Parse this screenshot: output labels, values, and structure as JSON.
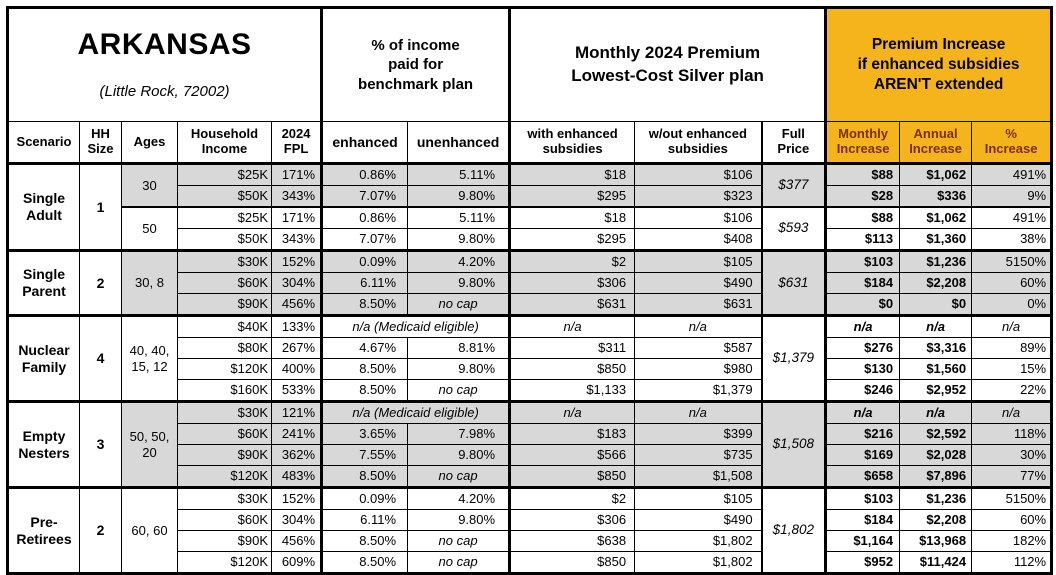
{
  "colors": {
    "amber": "#F5B41B",
    "row_shading_gray": "#D8D8D8",
    "increase_header_text": "#7B2F00",
    "border": "#000000"
  },
  "title_block": {
    "state": "ARKANSAS",
    "location": "(Little Rock, 72002)"
  },
  "group_headers": {
    "benchmark": "% of income\npaid for\nbenchmark plan",
    "premium": "Monthly 2024 Premium\nLowest-Cost Silver plan",
    "increase": "Premium Increase\nif enhanced subsidies\nAREN'T extended"
  },
  "column_headers": {
    "scenario": "Scenario",
    "hh_size": "HH\nSize",
    "ages": "Ages",
    "household_income": "Household\nIncome",
    "fpl_2024": "2024\nFPL",
    "enhanced": "enhanced",
    "unenhanced": "unenhanced",
    "with_enhanced_subsidies": "with enhanced\nsubsidies",
    "without_enhanced_subsidies": "w/out enhanced\nsubsidies",
    "full_price": "Full\nPrice",
    "monthly_increase": "Monthly\nIncrease",
    "annual_increase": "Annual\nIncrease",
    "pct_increase": "%\nIncrease"
  },
  "rows": [
    {
      "sep": null,
      "cells": [
        {
          "c": "scenario",
          "t": "Single\nAdult",
          "rs": 4
        },
        {
          "c": "hh",
          "t": "1",
          "rs": 4
        },
        {
          "c": "ages",
          "t": "30",
          "rs": 2,
          "sh": 1
        },
        {
          "c": "income",
          "t": "$25K",
          "sh": 1
        },
        {
          "c": "fpl",
          "t": "171%",
          "sh": 1
        },
        {
          "c": "enh",
          "t": "0.86%",
          "sh": 1
        },
        {
          "c": "unenh",
          "t": "5.11%",
          "sh": 1
        },
        {
          "c": "wsub",
          "t": "$18",
          "sh": 1
        },
        {
          "c": "wosub",
          "t": "$106",
          "sh": 1
        },
        {
          "c": "full",
          "t": "$377",
          "rs": 2,
          "sh": 1
        },
        {
          "c": "mi",
          "t": "$88",
          "sh": 1
        },
        {
          "c": "ai",
          "t": "$1,062",
          "sh": 1
        },
        {
          "c": "pct",
          "t": "491%",
          "sh": 1
        }
      ]
    },
    {
      "sep": null,
      "cells": [
        {
          "c": "income",
          "t": "$50K",
          "sh": 1
        },
        {
          "c": "fpl",
          "t": "343%",
          "sh": 1
        },
        {
          "c": "enh",
          "t": "7.07%",
          "sh": 1
        },
        {
          "c": "unenh",
          "t": "9.80%",
          "sh": 1
        },
        {
          "c": "wsub",
          "t": "$295",
          "sh": 1
        },
        {
          "c": "wosub",
          "t": "$323",
          "sh": 1
        },
        {
          "c": "mi",
          "t": "$28",
          "sh": 1
        },
        {
          "c": "ai",
          "t": "$336",
          "sh": 1
        },
        {
          "c": "pct",
          "t": "9%",
          "sh": 1
        }
      ]
    },
    {
      "sep": "sub",
      "cells": [
        {
          "c": "ages",
          "t": "50",
          "rs": 2
        },
        {
          "c": "income",
          "t": "$25K"
        },
        {
          "c": "fpl",
          "t": "171%"
        },
        {
          "c": "enh",
          "t": "0.86%"
        },
        {
          "c": "unenh",
          "t": "5.11%"
        },
        {
          "c": "wsub",
          "t": "$18"
        },
        {
          "c": "wosub",
          "t": "$106"
        },
        {
          "c": "full",
          "t": "$593",
          "rs": 2
        },
        {
          "c": "mi",
          "t": "$88"
        },
        {
          "c": "ai",
          "t": "$1,062"
        },
        {
          "c": "pct",
          "t": "491%"
        }
      ]
    },
    {
      "sep": null,
      "cells": [
        {
          "c": "income",
          "t": "$50K"
        },
        {
          "c": "fpl",
          "t": "343%"
        },
        {
          "c": "enh",
          "t": "7.07%"
        },
        {
          "c": "unenh",
          "t": "9.80%"
        },
        {
          "c": "wsub",
          "t": "$295"
        },
        {
          "c": "wosub",
          "t": "$408"
        },
        {
          "c": "mi",
          "t": "$113"
        },
        {
          "c": "ai",
          "t": "$1,360"
        },
        {
          "c": "pct",
          "t": "38%"
        }
      ]
    },
    {
      "sep": "section",
      "cells": [
        {
          "c": "scenario",
          "t": "Single\nParent",
          "rs": 3
        },
        {
          "c": "hh",
          "t": "2",
          "rs": 3
        },
        {
          "c": "ages",
          "t": "30, 8",
          "rs": 3,
          "sh": 1
        },
        {
          "c": "income",
          "t": "$30K",
          "sh": 1
        },
        {
          "c": "fpl",
          "t": "152%",
          "sh": 1
        },
        {
          "c": "enh",
          "t": "0.09%",
          "sh": 1
        },
        {
          "c": "unenh",
          "t": "4.20%",
          "sh": 1
        },
        {
          "c": "wsub",
          "t": "$2",
          "sh": 1
        },
        {
          "c": "wosub",
          "t": "$105",
          "sh": 1
        },
        {
          "c": "full",
          "t": "$631",
          "rs": 3,
          "sh": 1
        },
        {
          "c": "mi",
          "t": "$103",
          "sh": 1
        },
        {
          "c": "ai",
          "t": "$1,236",
          "sh": 1
        },
        {
          "c": "pct",
          "t": "5150%",
          "sh": 1
        }
      ]
    },
    {
      "sep": null,
      "cells": [
        {
          "c": "income",
          "t": "$60K",
          "sh": 1
        },
        {
          "c": "fpl",
          "t": "304%",
          "sh": 1
        },
        {
          "c": "enh",
          "t": "6.11%",
          "sh": 1
        },
        {
          "c": "unenh",
          "t": "9.80%",
          "sh": 1
        },
        {
          "c": "wsub",
          "t": "$306",
          "sh": 1
        },
        {
          "c": "wosub",
          "t": "$490",
          "sh": 1
        },
        {
          "c": "mi",
          "t": "$184",
          "sh": 1
        },
        {
          "c": "ai",
          "t": "$2,208",
          "sh": 1
        },
        {
          "c": "pct",
          "t": "60%",
          "sh": 1
        }
      ]
    },
    {
      "sep": null,
      "cells": [
        {
          "c": "income",
          "t": "$90K",
          "sh": 1
        },
        {
          "c": "fpl",
          "t": "456%",
          "sh": 1
        },
        {
          "c": "enh",
          "t": "8.50%",
          "sh": 1
        },
        {
          "c": "unenh",
          "t": "no cap",
          "sh": 1,
          "cls": "i c"
        },
        {
          "c": "wsub",
          "t": "$631",
          "sh": 1
        },
        {
          "c": "wosub",
          "t": "$631",
          "sh": 1
        },
        {
          "c": "mi",
          "t": "$0",
          "sh": 1
        },
        {
          "c": "ai",
          "t": "$0",
          "sh": 1
        },
        {
          "c": "pct",
          "t": "0%",
          "sh": 1
        }
      ]
    },
    {
      "sep": "section",
      "cells": [
        {
          "c": "scenario",
          "t": "Nuclear\nFamily",
          "rs": 4
        },
        {
          "c": "hh",
          "t": "4",
          "rs": 4
        },
        {
          "c": "ages",
          "t": "40, 40,\n15, 12",
          "rs": 4
        },
        {
          "c": "income",
          "t": "$40K"
        },
        {
          "c": "fpl",
          "t": "133%"
        },
        {
          "c": "enh",
          "t": "n/a (Medicaid eligible)",
          "cs": 2,
          "cls": "i c"
        },
        {
          "c": "wsub",
          "t": "n/a",
          "cls": "i c"
        },
        {
          "c": "wosub",
          "t": "n/a",
          "cls": "i c"
        },
        {
          "c": "full",
          "t": "$1,379",
          "rs": 4
        },
        {
          "c": "mi",
          "t": "n/a",
          "cls": "i c"
        },
        {
          "c": "ai",
          "t": "n/a",
          "cls": "i c"
        },
        {
          "c": "pct",
          "t": "n/a",
          "cls": "i c"
        }
      ]
    },
    {
      "sep": null,
      "cells": [
        {
          "c": "income",
          "t": "$80K"
        },
        {
          "c": "fpl",
          "t": "267%"
        },
        {
          "c": "enh",
          "t": "4.67%"
        },
        {
          "c": "unenh",
          "t": "8.81%"
        },
        {
          "c": "wsub",
          "t": "$311"
        },
        {
          "c": "wosub",
          "t": "$587"
        },
        {
          "c": "mi",
          "t": "$276"
        },
        {
          "c": "ai",
          "t": "$3,316"
        },
        {
          "c": "pct",
          "t": "89%"
        }
      ]
    },
    {
      "sep": null,
      "cells": [
        {
          "c": "income",
          "t": "$120K"
        },
        {
          "c": "fpl",
          "t": "400%"
        },
        {
          "c": "enh",
          "t": "8.50%"
        },
        {
          "c": "unenh",
          "t": "9.80%"
        },
        {
          "c": "wsub",
          "t": "$850"
        },
        {
          "c": "wosub",
          "t": "$980"
        },
        {
          "c": "mi",
          "t": "$130"
        },
        {
          "c": "ai",
          "t": "$1,560"
        },
        {
          "c": "pct",
          "t": "15%"
        }
      ]
    },
    {
      "sep": null,
      "cells": [
        {
          "c": "income",
          "t": "$160K"
        },
        {
          "c": "fpl",
          "t": "533%"
        },
        {
          "c": "enh",
          "t": "8.50%"
        },
        {
          "c": "unenh",
          "t": "no cap",
          "cls": "i c"
        },
        {
          "c": "wsub",
          "t": "$1,133"
        },
        {
          "c": "wosub",
          "t": "$1,379"
        },
        {
          "c": "mi",
          "t": "$246"
        },
        {
          "c": "ai",
          "t": "$2,952"
        },
        {
          "c": "pct",
          "t": "22%"
        }
      ]
    },
    {
      "sep": "section",
      "cells": [
        {
          "c": "scenario",
          "t": "Empty\nNesters",
          "rs": 4
        },
        {
          "c": "hh",
          "t": "3",
          "rs": 4
        },
        {
          "c": "ages",
          "t": "50, 50,\n20",
          "rs": 4,
          "sh": 1
        },
        {
          "c": "income",
          "t": "$30K",
          "sh": 1
        },
        {
          "c": "fpl",
          "t": "121%",
          "sh": 1
        },
        {
          "c": "enh",
          "t": "n/a (Medicaid eligible)",
          "cs": 2,
          "sh": 1,
          "cls": "i c"
        },
        {
          "c": "wsub",
          "t": "n/a",
          "sh": 1,
          "cls": "i c"
        },
        {
          "c": "wosub",
          "t": "n/a",
          "sh": 1,
          "cls": "i c"
        },
        {
          "c": "full",
          "t": "$1,508",
          "rs": 4,
          "sh": 1
        },
        {
          "c": "mi",
          "t": "n/a",
          "sh": 1,
          "cls": "i c"
        },
        {
          "c": "ai",
          "t": "n/a",
          "sh": 1,
          "cls": "i c"
        },
        {
          "c": "pct",
          "t": "n/a",
          "sh": 1,
          "cls": "i c"
        }
      ]
    },
    {
      "sep": null,
      "cells": [
        {
          "c": "income",
          "t": "$60K",
          "sh": 1
        },
        {
          "c": "fpl",
          "t": "241%",
          "sh": 1
        },
        {
          "c": "enh",
          "t": "3.65%",
          "sh": 1
        },
        {
          "c": "unenh",
          "t": "7.98%",
          "sh": 1
        },
        {
          "c": "wsub",
          "t": "$183",
          "sh": 1
        },
        {
          "c": "wosub",
          "t": "$399",
          "sh": 1
        },
        {
          "c": "mi",
          "t": "$216",
          "sh": 1
        },
        {
          "c": "ai",
          "t": "$2,592",
          "sh": 1
        },
        {
          "c": "pct",
          "t": "118%",
          "sh": 1
        }
      ]
    },
    {
      "sep": null,
      "cells": [
        {
          "c": "income",
          "t": "$90K",
          "sh": 1
        },
        {
          "c": "fpl",
          "t": "362%",
          "sh": 1
        },
        {
          "c": "enh",
          "t": "7.55%",
          "sh": 1
        },
        {
          "c": "unenh",
          "t": "9.80%",
          "sh": 1
        },
        {
          "c": "wsub",
          "t": "$566",
          "sh": 1
        },
        {
          "c": "wosub",
          "t": "$735",
          "sh": 1
        },
        {
          "c": "mi",
          "t": "$169",
          "sh": 1
        },
        {
          "c": "ai",
          "t": "$2,028",
          "sh": 1
        },
        {
          "c": "pct",
          "t": "30%",
          "sh": 1
        }
      ]
    },
    {
      "sep": null,
      "cells": [
        {
          "c": "income",
          "t": "$120K",
          "sh": 1
        },
        {
          "c": "fpl",
          "t": "483%",
          "sh": 1
        },
        {
          "c": "enh",
          "t": "8.50%",
          "sh": 1
        },
        {
          "c": "unenh",
          "t": "no cap",
          "sh": 1,
          "cls": "i c"
        },
        {
          "c": "wsub",
          "t": "$850",
          "sh": 1
        },
        {
          "c": "wosub",
          "t": "$1,508",
          "sh": 1
        },
        {
          "c": "mi",
          "t": "$658",
          "sh": 1
        },
        {
          "c": "ai",
          "t": "$7,896",
          "sh": 1
        },
        {
          "c": "pct",
          "t": "77%",
          "sh": 1
        }
      ]
    },
    {
      "sep": "section",
      "cells": [
        {
          "c": "scenario",
          "t": "Pre-\nRetirees",
          "rs": 4
        },
        {
          "c": "hh",
          "t": "2",
          "rs": 4
        },
        {
          "c": "ages",
          "t": "60, 60",
          "rs": 4
        },
        {
          "c": "income",
          "t": "$30K"
        },
        {
          "c": "fpl",
          "t": "152%"
        },
        {
          "c": "enh",
          "t": "0.09%"
        },
        {
          "c": "unenh",
          "t": "4.20%"
        },
        {
          "c": "wsub",
          "t": "$2"
        },
        {
          "c": "wosub",
          "t": "$105"
        },
        {
          "c": "full",
          "t": "$1,802",
          "rs": 4
        },
        {
          "c": "mi",
          "t": "$103"
        },
        {
          "c": "ai",
          "t": "$1,236"
        },
        {
          "c": "pct",
          "t": "5150%"
        }
      ]
    },
    {
      "sep": null,
      "cells": [
        {
          "c": "income",
          "t": "$60K"
        },
        {
          "c": "fpl",
          "t": "304%"
        },
        {
          "c": "enh",
          "t": "6.11%"
        },
        {
          "c": "unenh",
          "t": "9.80%"
        },
        {
          "c": "wsub",
          "t": "$306"
        },
        {
          "c": "wosub",
          "t": "$490"
        },
        {
          "c": "mi",
          "t": "$184"
        },
        {
          "c": "ai",
          "t": "$2,208"
        },
        {
          "c": "pct",
          "t": "60%"
        }
      ]
    },
    {
      "sep": null,
      "cells": [
        {
          "c": "income",
          "t": "$90K"
        },
        {
          "c": "fpl",
          "t": "456%"
        },
        {
          "c": "enh",
          "t": "8.50%"
        },
        {
          "c": "unenh",
          "t": "no cap",
          "cls": "i c"
        },
        {
          "c": "wsub",
          "t": "$638"
        },
        {
          "c": "wosub",
          "t": "$1,802"
        },
        {
          "c": "mi",
          "t": "$1,164"
        },
        {
          "c": "ai",
          "t": "$13,968"
        },
        {
          "c": "pct",
          "t": "182%"
        }
      ]
    },
    {
      "sep": null,
      "cells": [
        {
          "c": "income",
          "t": "$120K"
        },
        {
          "c": "fpl",
          "t": "609%"
        },
        {
          "c": "enh",
          "t": "8.50%"
        },
        {
          "c": "unenh",
          "t": "no cap",
          "cls": "i c"
        },
        {
          "c": "wsub",
          "t": "$850"
        },
        {
          "c": "wosub",
          "t": "$1,802"
        },
        {
          "c": "mi",
          "t": "$952"
        },
        {
          "c": "ai",
          "t": "$11,424"
        },
        {
          "c": "pct",
          "t": "112%"
        }
      ]
    }
  ]
}
